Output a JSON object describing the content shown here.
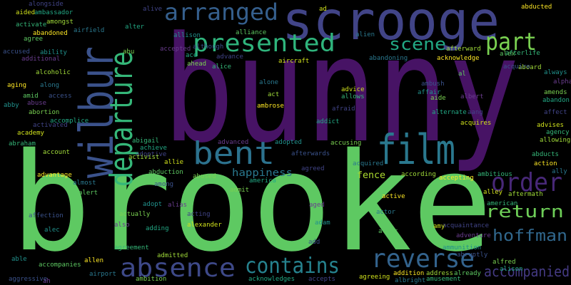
{
  "words": [
    "bunny",
    "brooke",
    "scrooge",
    "wilbur",
    "departure",
    "arranged",
    "presented",
    "film",
    "bent",
    "part",
    "scene",
    "order",
    "return",
    "hoffman",
    "accompanied",
    "absence",
    "contains",
    "reverse",
    "happiness",
    "fence",
    "ambassador",
    "alongside",
    "aided",
    "activate",
    "amongst",
    "abandoned",
    "airfield",
    "agree",
    "accused",
    "ability",
    "additional",
    "abu",
    "alter",
    "alive",
    "ad",
    "afterlife",
    "aboard",
    "abducted",
    "alien",
    "alliance",
    "although",
    "allison",
    "accepted",
    "ahead",
    "ace",
    "advance",
    "aircraft",
    "alice",
    "afterward",
    "acknowledge",
    "abandoning",
    "alex",
    "acquire",
    "always",
    "alpha",
    "amends",
    "abandon",
    "affect",
    "advises",
    "agency",
    "allowing",
    "action",
    "ally",
    "al",
    "ambush",
    "affair",
    "albert",
    "aide",
    "alternate",
    "aang",
    "acquires",
    "abducts",
    "alcoholic",
    "aging",
    "along",
    "amid",
    "access",
    "abby",
    "abuse",
    "abortion",
    "accomplice",
    "activated",
    "academy",
    "abraham",
    "account",
    "advantage",
    "almost",
    "alert",
    "affection",
    "alec",
    "also",
    "actually",
    "adding",
    "acting",
    "alexander",
    "agreement",
    "admitted",
    "allen",
    "airport",
    "accompanies",
    "aggressive",
    "able",
    "ah",
    "ambition",
    "acknowledges",
    "accepts",
    "agreeing",
    "amusement",
    "address",
    "addition",
    "albright",
    "already",
    "abruptly",
    "ammunition",
    "adventure",
    "alfred",
    "alison",
    "acquaintance",
    "amy",
    "american",
    "aftermath",
    "active",
    "actor",
    "altar",
    "add",
    "adam",
    "aged",
    "admit",
    "america",
    "agreed",
    "alley",
    "ambitious",
    "according",
    "accepting",
    "acquired",
    "ali",
    "afterwards",
    "adopted",
    "advanced",
    "accusing",
    "addict",
    "afraid",
    "advice",
    "allows",
    "act",
    "ambrose",
    "alone",
    "abduction",
    "among",
    "adopt",
    "alias",
    "abused",
    "achieve",
    "adoptive",
    "allie",
    "abigail",
    "activist"
  ]
}
